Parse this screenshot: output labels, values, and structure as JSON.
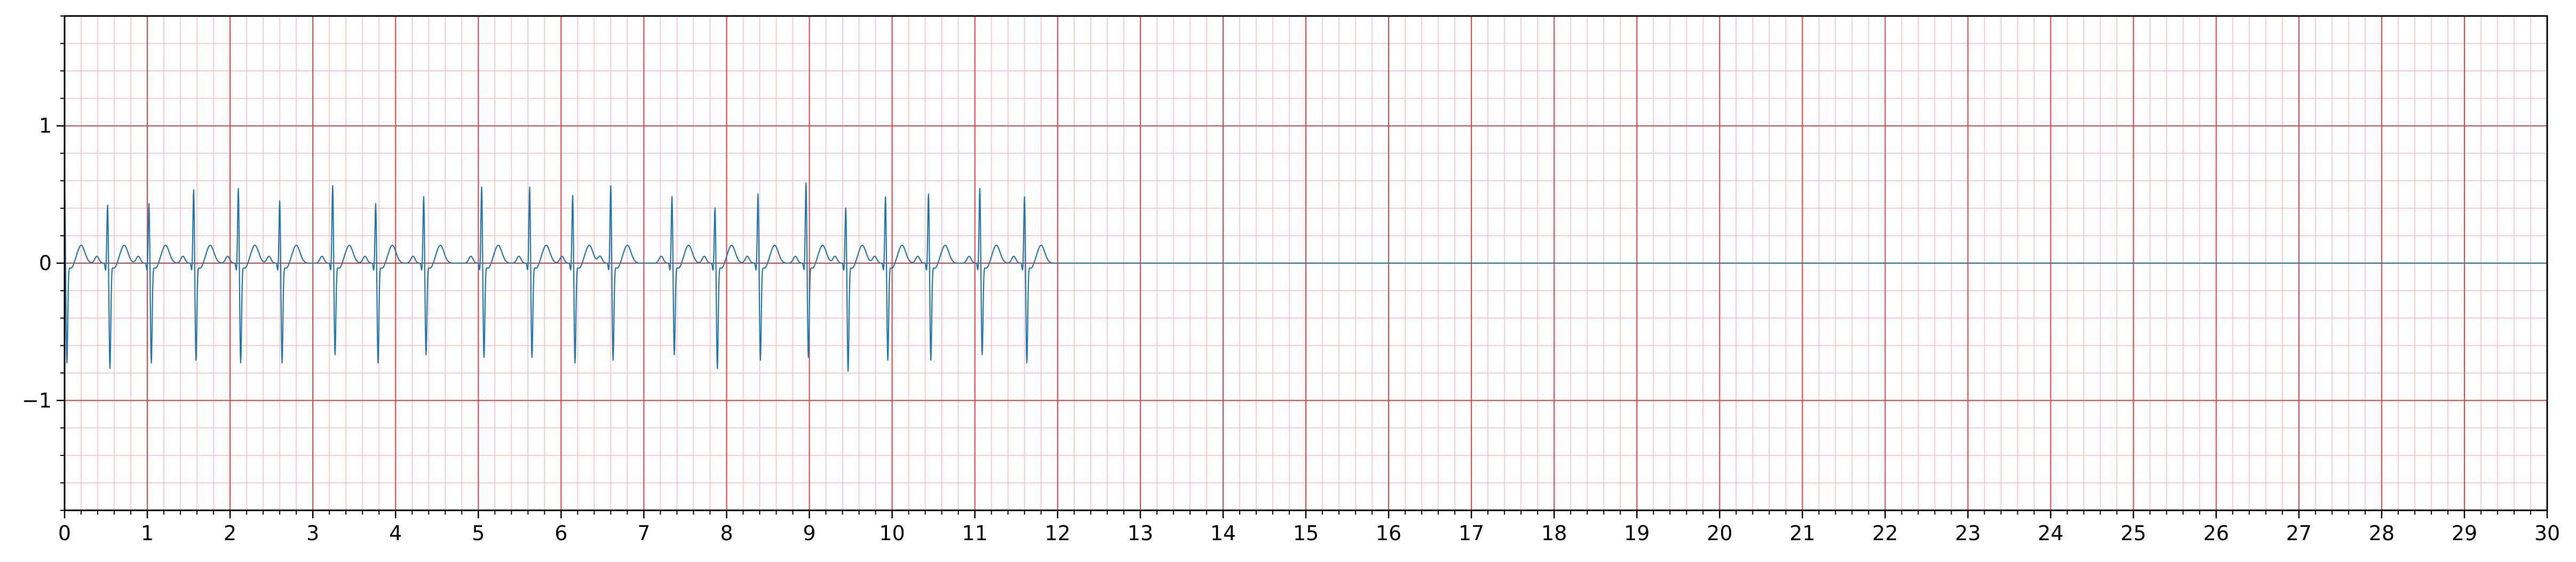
{
  "chart_data": {
    "type": "line",
    "title": "",
    "xlabel": "",
    "ylabel": "",
    "xlim": [
      0,
      30
    ],
    "ylim": [
      -1.8,
      1.8
    ],
    "x_ticks": [
      0,
      1,
      2,
      3,
      4,
      5,
      6,
      7,
      8,
      9,
      10,
      11,
      12,
      13,
      14,
      15,
      16,
      17,
      18,
      19,
      20,
      21,
      22,
      23,
      24,
      25,
      26,
      27,
      28,
      29,
      30
    ],
    "x_tick_labels": [
      "0",
      "1",
      "2",
      "3",
      "4",
      "5",
      "6",
      "7",
      "8",
      "9",
      "10",
      "11",
      "12",
      "13",
      "14",
      "15",
      "16",
      "17",
      "18",
      "19",
      "20",
      "21",
      "22",
      "23",
      "24",
      "25",
      "26",
      "27",
      "28",
      "29",
      "30"
    ],
    "y_ticks": [
      -1,
      0,
      1
    ],
    "y_tick_labels": [
      "−1",
      "0",
      "1"
    ],
    "grid": {
      "major": true,
      "minor": true,
      "major_color": "#ee3b3b",
      "minor_color": "#ffbcbc",
      "minor_step_x": 0.2,
      "minor_step_y": 0.2
    },
    "legend": "none",
    "series": [
      {
        "color": "#1f77b4",
        "segment_end_x": 12.0,
        "baseline_after_end": 0.0,
        "beat_times": [
          0.0,
          0.52,
          1.02,
          1.56,
          2.1,
          2.6,
          3.24,
          3.76,
          4.34,
          5.04,
          5.62,
          6.14,
          6.6,
          7.34,
          7.86,
          8.38,
          8.96,
          9.44,
          9.92,
          10.44,
          11.06,
          11.6
        ],
        "r_peaks": [
          0.58,
          0.44,
          0.45,
          0.55,
          0.56,
          0.47,
          0.58,
          0.45,
          0.5,
          0.57,
          0.57,
          0.51,
          0.58,
          0.5,
          0.42,
          0.52,
          0.6,
          0.42,
          0.5,
          0.52,
          0.56,
          0.5
        ],
        "s_troughs": [
          -0.72,
          -0.76,
          -0.72,
          -0.7,
          -0.72,
          -0.72,
          -0.66,
          -0.72,
          -0.66,
          -0.68,
          -0.68,
          -0.72,
          -0.7,
          -0.66,
          -0.76,
          -0.7,
          -0.68,
          -0.78,
          -0.7,
          -0.7,
          -0.66,
          -0.72
        ],
        "t_wave_amplitude": 0.13
      }
    ]
  }
}
